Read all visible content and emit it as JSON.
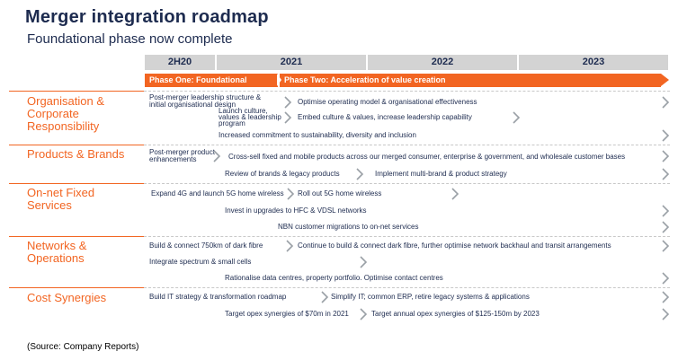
{
  "title": "Merger integration roadmap",
  "subtitle": "Foundational phase now complete",
  "periods": [
    "2H20",
    "2021",
    "2022",
    "2023"
  ],
  "phases": {
    "phase_one": "Phase One: Foundational",
    "phase_two": "Phase Two: Acceleration of value creation"
  },
  "sections": {
    "org": {
      "label_1": "Organisation &",
      "label_2": "Corporate",
      "label_3": "Responsibility",
      "item_1a": "Post-merger leadership structure &",
      "item_1b": "initial organisational design",
      "item_2": "Optimise operating model & organisational effectiveness",
      "item_3a": "Launch culture,",
      "item_3b": "values & leadership",
      "item_3c": "program",
      "item_4": "Embed culture & values, increase leadership capability",
      "item_5": "Increased commitment to sustainability, diversity and inclusion"
    },
    "products": {
      "label_1": "Products & Brands",
      "item_1a": "Post-merger product",
      "item_1b": "enhancements",
      "item_2": "Cross-sell fixed and mobile products across our merged consumer, enterprise & government, and wholesale customer bases",
      "item_3": "Review of brands & legacy products",
      "item_4": "Implement multi-brand & product strategy"
    },
    "onnet": {
      "label_1": "On-net Fixed",
      "label_2": "Services",
      "item_1": "Expand 4G and launch 5G home wireless",
      "item_2": "Roll out 5G home wireless",
      "item_3": "Invest in upgrades to HFC & VDSL networks",
      "item_4": "NBN customer migrations to on-net services"
    },
    "networks": {
      "label_1": "Networks &",
      "label_2": "Operations",
      "item_1": "Build & connect 750km of dark fibre",
      "item_2": "Continue to build & connect dark fibre, further optimise network backhaul and transit arrangements",
      "item_3": "Integrate spectrum & small cells",
      "item_4": "Rationalise data centres, property portfolio. Optimise contact centres"
    },
    "synergies": {
      "label_1": "Cost Synergies",
      "item_1": "Build IT strategy & transformation roadmap",
      "item_2": "Simplify IT; common ERP, retire legacy systems & applications",
      "item_3": "Target opex synergies of $70m in 2021",
      "item_4": "Target annual opex synergies of $125-150m by 2023"
    }
  },
  "source": "(Source: Company Reports)",
  "colors": {
    "accent": "#f26522",
    "navy": "#1d2b4f",
    "header_grey": "#d3d3d3",
    "chevron": "#9aa0a6"
  },
  "icons": {
    "chevron": "chevron-right-icon"
  }
}
